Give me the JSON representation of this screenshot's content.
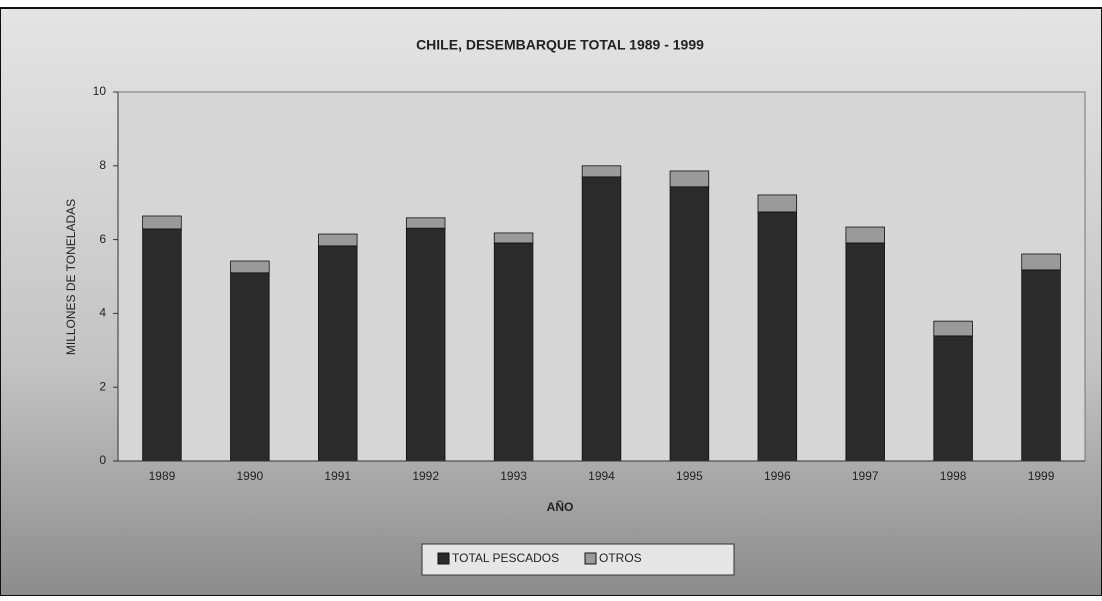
{
  "chart_data": {
    "type": "stacked_bar",
    "title": "CHILE, DESEMBARQUE TOTAL 1989 - 1999",
    "x_label": "AÑO",
    "y_label": "MILLONES DE TONELADAS",
    "categories": [
      "1989",
      "1990",
      "1991",
      "1992",
      "1993",
      "1994",
      "1995",
      "1996",
      "1997",
      "1998",
      "1999"
    ],
    "series": [
      {
        "name": "TOTAL PESCADOS",
        "color": "#2b2b2b",
        "values": [
          6.29,
          5.1,
          5.83,
          6.31,
          5.91,
          7.7,
          7.43,
          6.75,
          5.91,
          3.39,
          5.18
        ]
      },
      {
        "name": "OTROS",
        "color": "#9a9a9a",
        "values": [
          0.35,
          0.32,
          0.32,
          0.28,
          0.27,
          0.3,
          0.43,
          0.46,
          0.43,
          0.4,
          0.43
        ]
      }
    ],
    "ylim": [
      0,
      10
    ],
    "yticks": [
      0,
      2,
      4,
      6,
      8,
      10
    ],
    "legend": "bottom"
  }
}
